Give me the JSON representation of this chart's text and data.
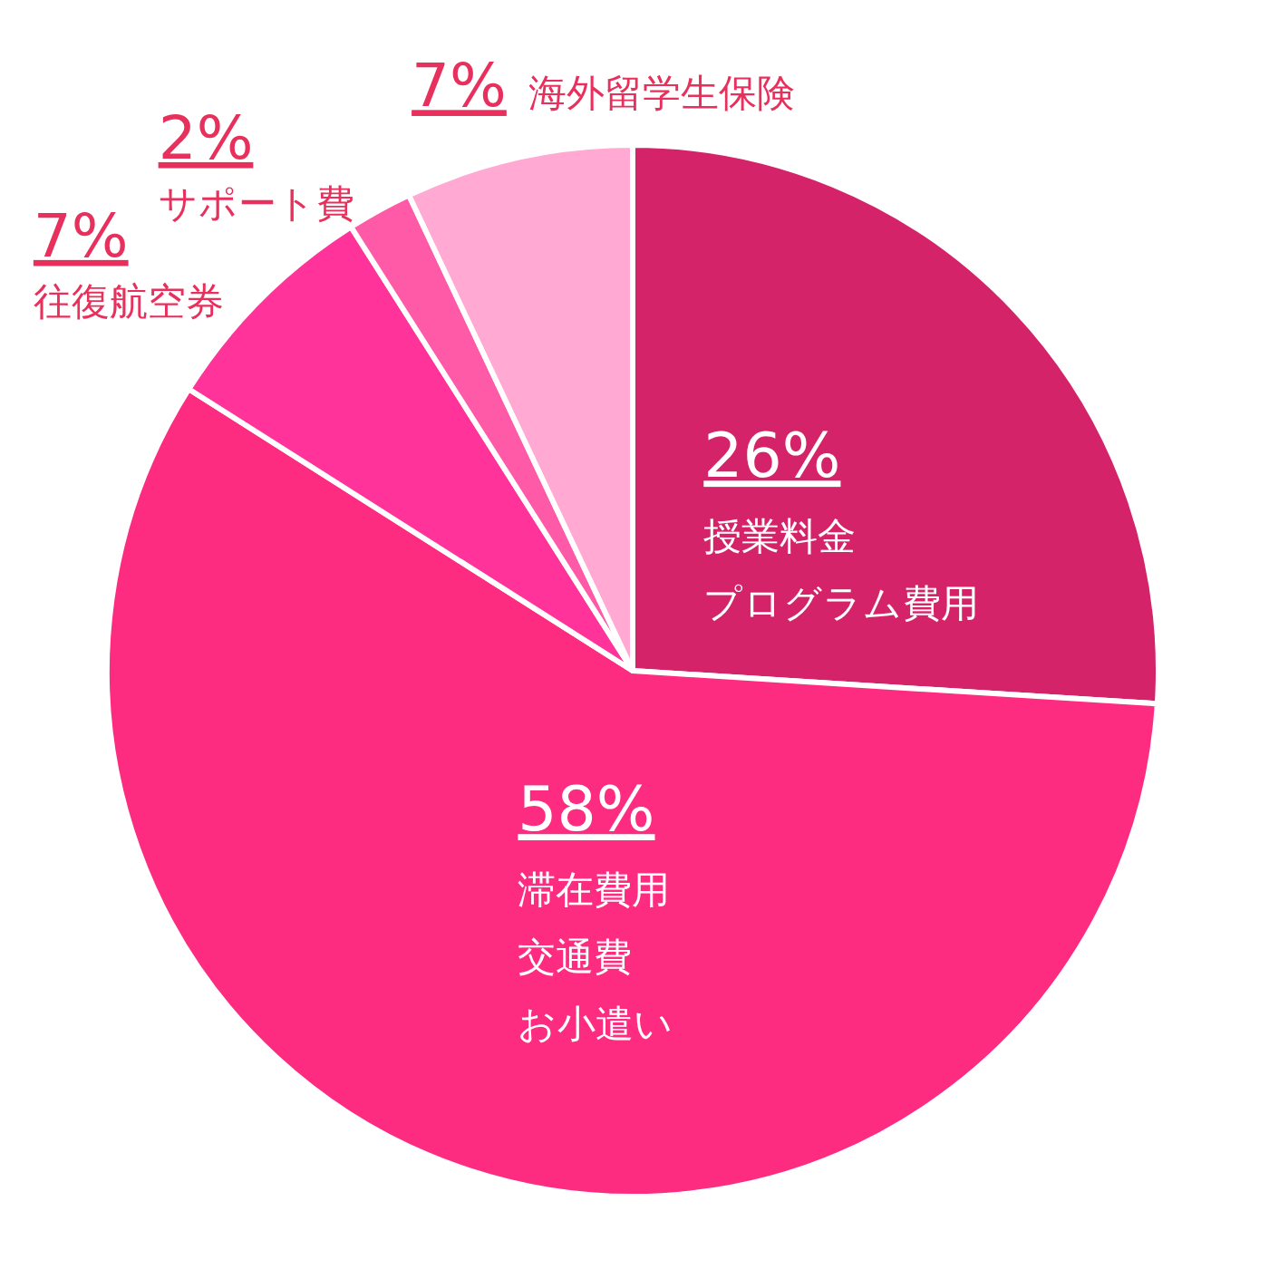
{
  "chart_data": {
    "type": "pie",
    "categories": [
      "授業料金プログラム費用",
      "滞在費用交通費お小遣い",
      "往復航空券",
      "サポート費",
      "海外留学生保険"
    ],
    "values": [
      26,
      58,
      7,
      2,
      7
    ],
    "value_labels": [
      "26%",
      "58%",
      "7%",
      "2%",
      "7%"
    ],
    "colors": [
      "#d42368",
      "#fe2c80",
      "#ff3399",
      "#ff5aa8",
      "#ffa9d3"
    ]
  }
}
